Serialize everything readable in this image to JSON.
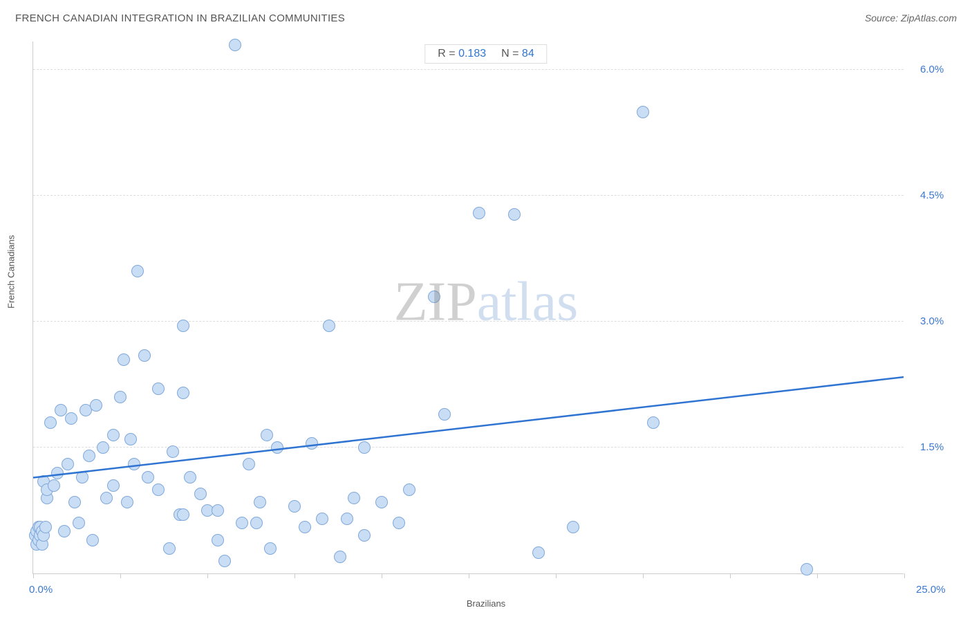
{
  "header": {
    "title": "FRENCH CANADIAN INTEGRATION IN BRAZILIAN COMMUNITIES",
    "source": "Source: ZipAtlas.com"
  },
  "stats": {
    "r_label": "R = ",
    "r_value": "0.183",
    "n_label": "N = ",
    "n_value": "84"
  },
  "watermark": {
    "part1": "ZIP",
    "part2": "atlas"
  },
  "axes": {
    "xlabel": "Brazilians",
    "ylabel": "French Canadians",
    "xmin_label": "0.0%",
    "xmax_label": "25.0%",
    "ytick_labels": [
      "1.5%",
      "3.0%",
      "4.5%",
      "6.0%"
    ]
  },
  "chart": {
    "type": "scatter",
    "xlim": [
      0,
      25
    ],
    "ylim": [
      0,
      6.35
    ],
    "yticks": [
      1.5,
      3.0,
      4.5,
      6.0
    ],
    "xticks": [
      0,
      2.5,
      5,
      7.5,
      10,
      12.5,
      15,
      17.5,
      20,
      22.5,
      25
    ],
    "background_color": "#ffffff",
    "grid_color": "#dddddd",
    "axis_color": "#cccccc",
    "tick_label_color": "#3b78ce",
    "axis_label_color": "#555555",
    "point_fill": "#c9ddf5",
    "point_stroke": "#7fa8da",
    "point_stroke_width": 1,
    "point_radius": 9,
    "trend_color": "#2f74d0",
    "trend_width": 2.5,
    "trend_y_at_xmin": 1.15,
    "trend_y_at_xmax": 2.35,
    "points": [
      [
        0.05,
        0.45
      ],
      [
        0.1,
        0.35
      ],
      [
        0.1,
        0.5
      ],
      [
        0.15,
        0.55
      ],
      [
        0.15,
        0.4
      ],
      [
        0.2,
        0.45
      ],
      [
        0.2,
        0.55
      ],
      [
        0.25,
        0.35
      ],
      [
        0.25,
        0.5
      ],
      [
        0.3,
        0.45
      ],
      [
        0.3,
        1.1
      ],
      [
        0.35,
        0.55
      ],
      [
        0.4,
        0.9
      ],
      [
        0.4,
        1.0
      ],
      [
        0.5,
        1.8
      ],
      [
        0.6,
        1.05
      ],
      [
        0.7,
        1.2
      ],
      [
        0.8,
        1.95
      ],
      [
        0.9,
        0.5
      ],
      [
        1.0,
        1.3
      ],
      [
        1.1,
        1.85
      ],
      [
        1.2,
        0.85
      ],
      [
        1.3,
        0.6
      ],
      [
        1.4,
        1.15
      ],
      [
        1.5,
        1.95
      ],
      [
        1.6,
        1.4
      ],
      [
        1.7,
        0.4
      ],
      [
        1.8,
        2.0
      ],
      [
        2.0,
        1.5
      ],
      [
        2.1,
        0.9
      ],
      [
        2.3,
        1.65
      ],
      [
        2.3,
        1.05
      ],
      [
        2.5,
        2.1
      ],
      [
        2.6,
        2.55
      ],
      [
        2.7,
        0.85
      ],
      [
        2.8,
        1.6
      ],
      [
        2.9,
        1.3
      ],
      [
        3.0,
        3.6
      ],
      [
        3.2,
        2.6
      ],
      [
        3.3,
        1.15
      ],
      [
        3.6,
        2.2
      ],
      [
        3.6,
        1.0
      ],
      [
        3.9,
        0.3
      ],
      [
        4.0,
        1.45
      ],
      [
        4.2,
        0.7
      ],
      [
        4.3,
        2.95
      ],
      [
        4.3,
        2.15
      ],
      [
        4.3,
        0.7
      ],
      [
        4.5,
        1.15
      ],
      [
        4.8,
        0.95
      ],
      [
        5.0,
        0.75
      ],
      [
        5.3,
        0.75
      ],
      [
        5.3,
        0.4
      ],
      [
        5.5,
        0.15
      ],
      [
        5.8,
        6.3
      ],
      [
        6.0,
        0.6
      ],
      [
        6.2,
        1.3
      ],
      [
        6.4,
        0.6
      ],
      [
        6.5,
        0.85
      ],
      [
        6.7,
        1.65
      ],
      [
        6.8,
        0.3
      ],
      [
        7.0,
        1.5
      ],
      [
        7.5,
        0.8
      ],
      [
        7.8,
        0.55
      ],
      [
        8.0,
        1.55
      ],
      [
        8.3,
        0.65
      ],
      [
        8.5,
        2.95
      ],
      [
        8.8,
        0.2
      ],
      [
        9.2,
        0.9
      ],
      [
        9.5,
        1.5
      ],
      [
        9.5,
        0.45
      ],
      [
        10.0,
        0.85
      ],
      [
        10.5,
        0.6
      ],
      [
        10.8,
        1.0
      ],
      [
        11.5,
        3.3
      ],
      [
        11.8,
        1.9
      ],
      [
        12.8,
        4.3
      ],
      [
        13.8,
        4.28
      ],
      [
        14.5,
        0.25
      ],
      [
        15.5,
        0.55
      ],
      [
        17.5,
        5.5
      ],
      [
        17.8,
        1.8
      ],
      [
        22.2,
        0.05
      ],
      [
        9.0,
        0.65
      ]
    ]
  }
}
